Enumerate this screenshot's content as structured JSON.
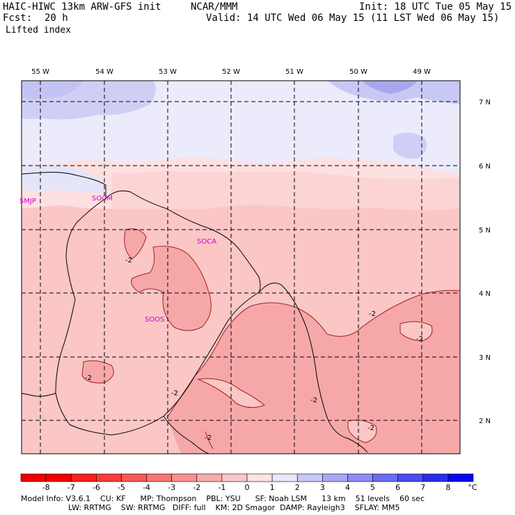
{
  "header": {
    "model_title": "HAIC-HIWC 13km ARW-GFS init",
    "org": "NCAR/MMM",
    "init": "Init: 18 UTC Tue 05 May 15",
    "fcst_label": "Fcst:",
    "fcst_value": "20 h",
    "valid": "Valid: 14 UTC Wed 06 May 15 (11 LST Wed 06 May 15)",
    "field": "Lifted index"
  },
  "map": {
    "lon_labels": [
      "55 W",
      "54 W",
      "53 W",
      "52 W",
      "51 W",
      "50 W",
      "49 W"
    ],
    "lat_labels": [
      "7 N",
      "6 N",
      "5 N",
      "4 N",
      "3 N",
      "2 N"
    ],
    "stations": [
      "SMJP",
      "SOCM",
      "SOCA",
      "SOOS"
    ],
    "contour_label": "-2",
    "colors": {
      "background": "#fde0e0",
      "blue_light": "#e8e8fb",
      "blue_mid": "#c8c8f5",
      "pink_light": "#fdd8d8",
      "pink_mid": "#f8b4b4",
      "pink_dark": "#f4a2a2"
    }
  },
  "colorbar": {
    "ticks": [
      "-8",
      "-7",
      "-6",
      "-5",
      "-4",
      "-3",
      "-2",
      "-1",
      "0",
      "1",
      "2",
      "3",
      "4",
      "5",
      "6",
      "7",
      "8"
    ],
    "unit": "°C",
    "colors": [
      "#f00000",
      "#f62020",
      "#f83c3c",
      "#f85858",
      "#f87474",
      "#f89090",
      "#f8acac",
      "#fac8c8",
      "#fce4e4",
      "#e8e8fc",
      "#c8c8f8",
      "#a8a8f6",
      "#8c8cf4",
      "#6c6cf2",
      "#4c4cf0",
      "#2c2cee",
      "#0808ea"
    ]
  },
  "footer": {
    "line1": "Model Info: V3.6.1    CU: KF      MP: Thompson    PBL: YSU      SF: Noah LSM      13 km    51 levels    60 sec",
    "line2": "LW: RRTMG    SW: RRTMG   DIFF: full    KM: 2D Smagor  DAMP: Rayleigh3    SFLAY: MM5"
  }
}
